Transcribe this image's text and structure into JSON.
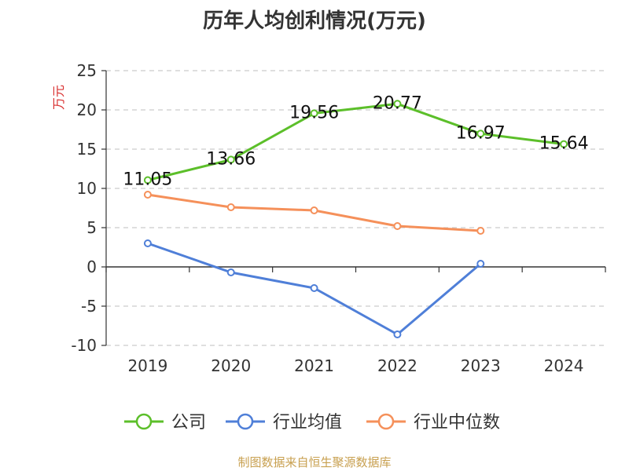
{
  "chart_data": {
    "type": "line",
    "title": "历年人均创利情况(万元)",
    "ylabel": "万元",
    "categories": [
      "2019",
      "2020",
      "2021",
      "2022",
      "2023",
      "2024"
    ],
    "ylim": [
      -10,
      25
    ],
    "yticks": [
      25,
      20,
      15,
      10,
      5,
      0,
      -5,
      -10
    ],
    "grid": true,
    "legend_position": "bottom",
    "series": [
      {
        "name": "公司",
        "color": "#5cbf2a",
        "values": [
          11.05,
          13.66,
          19.56,
          20.77,
          16.97,
          15.64
        ],
        "labels": [
          "11.05",
          "13.66",
          "19.56",
          "20.77",
          "16.97",
          "15.64"
        ]
      },
      {
        "name": "行业均值",
        "color": "#4f7fd8",
        "values": [
          3.0,
          -0.7,
          -2.7,
          -8.6,
          0.4,
          null
        ]
      },
      {
        "name": "行业中位数",
        "color": "#f5905a",
        "values": [
          9.2,
          7.6,
          7.2,
          5.2,
          4.6,
          null
        ]
      }
    ]
  },
  "source": "制图数据来自恒生聚源数据库"
}
